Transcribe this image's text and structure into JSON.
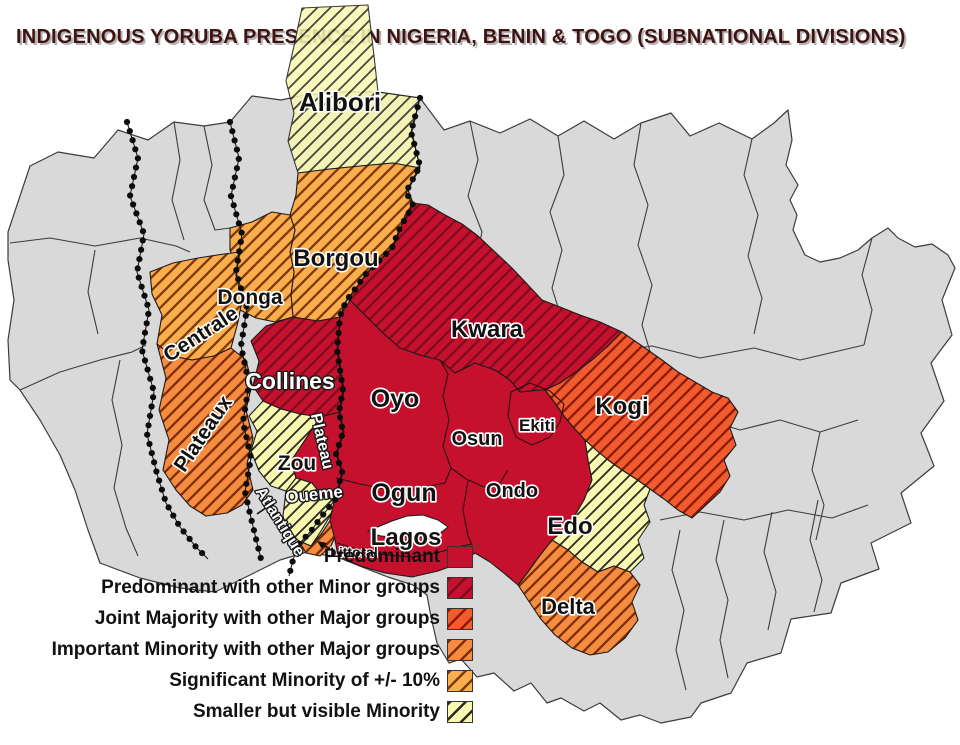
{
  "title": "INDIGENOUS YORUBA PRESENCE IN NIGERIA, BENIN & TOGO (SUBNATIONAL DIVISIONS)",
  "map": {
    "labels": {
      "alibori": "Alibori",
      "borgou": "Borgou",
      "donga": "Donga",
      "centrale": "Centrale",
      "plateaux": "Plateaux",
      "collines": "Collines",
      "zou": "Zou",
      "plateau": "Plateau",
      "oueme": "Oueme",
      "atlantique": "Atlantique",
      "littoral": "Littoral",
      "kwara": "Kwara",
      "oyo": "Oyo",
      "osun": "Osun",
      "ekiti": "Ekiti",
      "ogun": "Ogun",
      "ondo": "Ondo",
      "lagos": "Lagos",
      "kogi": "Kogi",
      "edo": "Edo",
      "delta": "Delta"
    }
  },
  "legend": {
    "items": [
      {
        "label": "Predominant",
        "base": "#c5112e",
        "hatch": null
      },
      {
        "label": "Predominant with other Minor groups",
        "base": "#c5112e",
        "hatch": "#7d0b1f"
      },
      {
        "label": "Joint Majority with other Major groups",
        "base": "#f15b2d",
        "hatch": "#8b1a07"
      },
      {
        "label": "Important Minority with other Major groups",
        "base": "#f68c3f",
        "hatch": "#7d2e06"
      },
      {
        "label": "Significant Minority of +/- 10%",
        "base": "#fbae4d",
        "hatch": "#7d3a06"
      },
      {
        "label": "Smaller but visible Minority",
        "base": "#f9f8b0",
        "hatch": "#2a2a22"
      }
    ]
  },
  "colors": {
    "title_text": "#3e1315",
    "land": "#d9d9d9",
    "land_border": "#3c3c3c",
    "country_dots": "#0b0b0b",
    "sea": "#ffffff"
  }
}
